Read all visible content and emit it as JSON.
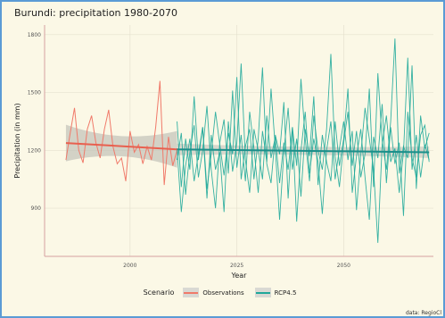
{
  "chart_data": {
    "type": "line",
    "title": "Burundi: precipitation 1980-2070",
    "xlabel": "Year",
    "ylabel": "Precipitation (in mm)",
    "xlim": [
      1980,
      2071
    ],
    "ylim": [
      650,
      1850
    ],
    "x_ticks": [
      2000,
      2025,
      2050
    ],
    "y_ticks": [
      900,
      1200,
      1500,
      1800
    ],
    "grid": true,
    "legend_position": "bottom",
    "legend_title": "Scenario",
    "caption": "data: RegioCl",
    "colors": {
      "Observations": "#f07a6a",
      "RCP4.5": "#1fa89a",
      "band": "#bdbdb6",
      "observation_trend": "#e8604f",
      "rcp_trend": "#1b8f8a"
    },
    "series": [
      {
        "name": "Observations",
        "x": [
          1985,
          1986,
          1987,
          1988,
          1989,
          1990,
          1991,
          1992,
          1993,
          1994,
          1995,
          1996,
          1997,
          1998,
          1999,
          2000,
          2001,
          2002,
          2003,
          2004,
          2005,
          2006,
          2007,
          2008,
          2009,
          2010,
          2011
        ],
        "values": [
          1150,
          1290,
          1420,
          1200,
          1135,
          1310,
          1380,
          1240,
          1160,
          1310,
          1410,
          1220,
          1130,
          1160,
          1040,
          1300,
          1190,
          1230,
          1130,
          1220,
          1150,
          1320,
          1560,
          1020,
          1270,
          1120,
          1200
        ]
      },
      {
        "name": "RCP4.5",
        "x": [
          2011,
          2012,
          2013,
          2014,
          2015,
          2016,
          2017,
          2018,
          2019,
          2020,
          2021,
          2022,
          2023,
          2024,
          2025,
          2026,
          2027,
          2028,
          2029,
          2030,
          2031,
          2032,
          2033,
          2034,
          2035,
          2036,
          2037,
          2038,
          2039,
          2040,
          2041,
          2042,
          2043,
          2044,
          2045,
          2046,
          2047,
          2048,
          2049,
          2050,
          2051,
          2052,
          2053,
          2054,
          2055,
          2056,
          2057,
          2058,
          2059,
          2060,
          2061,
          2062,
          2063,
          2064,
          2065,
          2066,
          2067,
          2068,
          2069,
          2070
        ],
        "lines": [
          [
            1350,
            1010,
            1260,
            1100,
            1480,
            1150,
            1320,
            1000,
            1180,
            1400,
            1230,
            1070,
            1290,
            1180,
            1580,
            1050,
            1220,
            1310,
            1050,
            1260,
            1630,
            1130,
            1030,
            1280,
            1180,
            1450,
            950,
            1320,
            1120,
            1570,
            1260,
            1040,
            1380,
            1200,
            1100,
            1310,
            1700,
            1170,
            1010,
            1240,
            1400,
            1120,
            1300,
            1060,
            1180,
            1520,
            1010,
            1600,
            1250,
            1100,
            1350,
            1780,
            1080,
            1220,
            1160,
            1640,
            1000,
            1380,
            1210,
            1290
          ],
          [
            1150,
            1290,
            970,
            1190,
            1330,
            1060,
            1200,
            1430,
            1100,
            900,
            1240,
            1360,
            1080,
            1510,
            1110,
            1280,
            1040,
            1400,
            1210,
            980,
            1300,
            1140,
            1520,
            1210,
            840,
            1190,
            1420,
            1100,
            1260,
            960,
            1310,
            1170,
            1480,
            1020,
            1280,
            1140,
            1040,
            1350,
            1120,
            1260,
            1520,
            980,
            1170,
            1310,
            1060,
            840,
            1270,
            1160,
            1440,
            1030,
            1320,
            1130,
            1240,
            860,
            1400,
            1160,
            1060,
            1280,
            1330,
            1140
          ],
          [
            1210,
            880,
            1120,
            1260,
            1040,
            1180,
            1320,
            950,
            1280,
            1100,
            1190,
            880,
            1350,
            1090,
            1240,
            1650,
            1150,
            980,
            1310,
            1200,
            1050,
            1380,
            1160,
            1270,
            1030,
            1240,
            1100,
            1320,
            830,
            1200,
            1400,
            1080,
            1260,
            1140,
            870,
            1200,
            1350,
            1050,
            1210,
            1350,
            1150,
            1300,
            890,
            1180,
            1420,
            1260,
            1100,
            720,
            1230,
            1380,
            1140,
            1210,
            980,
            1190,
            1680,
            1100,
            1280,
            1060,
            1230,
            1150
          ]
        ]
      }
    ],
    "trends": {
      "Observations": {
        "x": [
          1985,
          2011
        ],
        "values": [
          1238,
          1205
        ]
      },
      "RCP4.5": {
        "x": [
          2011,
          2070
        ],
        "values": [
          1205,
          1190
        ]
      }
    }
  },
  "legend": {
    "title": "Scenario",
    "items": [
      {
        "label": "Observations",
        "color": "#f07a6a"
      },
      {
        "label": "RCP4.5",
        "color": "#1fa89a"
      }
    ]
  }
}
